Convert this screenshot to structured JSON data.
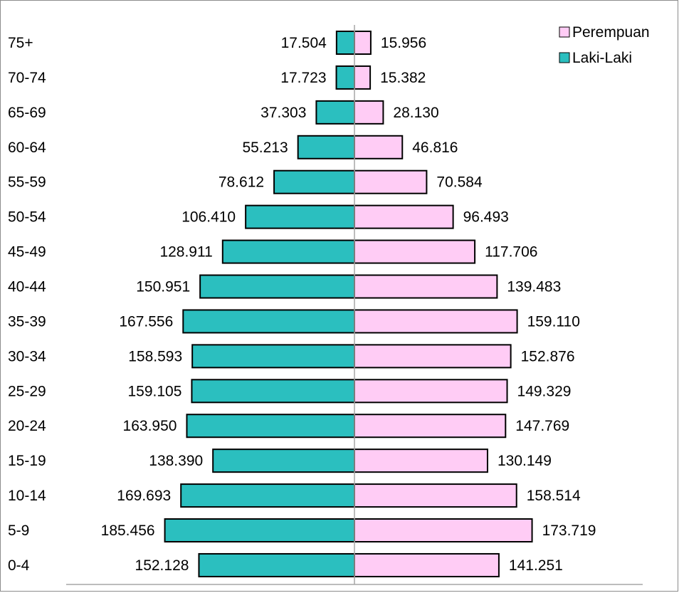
{
  "chart_data": {
    "type": "bar",
    "title": "",
    "xlabel": "",
    "ylabel": "",
    "orientation": "horizontal",
    "layout": "population-pyramid",
    "categories": [
      "75+",
      "70-74",
      "65-69",
      "60-64",
      "55-59",
      "50-54",
      "45-49",
      "40-44",
      "35-39",
      "30-34",
      "25-29",
      "20-24",
      "15-19",
      "10-14",
      "5-9",
      "0-4"
    ],
    "series": [
      {
        "name": "Perempuan",
        "side": "right",
        "color": "#FFCCF5",
        "values": [
          15956,
          15382,
          28130,
          46816,
          70584,
          96493,
          117706,
          139483,
          159110,
          152876,
          149329,
          147769,
          130149,
          158514,
          173719,
          141251
        ],
        "labels": [
          "15.956",
          "15.382",
          "28.130",
          "46.816",
          "70.584",
          "96.493",
          "117.706",
          "139.483",
          "159.110",
          "152.876",
          "149.329",
          "147.769",
          "130.149",
          "158.514",
          "173.719",
          "141.251"
        ]
      },
      {
        "name": "Laki-Laki",
        "side": "left",
        "color": "#2BBFBF",
        "values": [
          17504,
          17723,
          37303,
          55213,
          78612,
          106410,
          128911,
          150951,
          167556,
          158593,
          159105,
          163950,
          138390,
          169693,
          185456,
          152128
        ],
        "labels": [
          "17.504",
          "17.723",
          "37.303",
          "55.213",
          "78.612",
          "106.410",
          "128.911",
          "150.951",
          "167.556",
          "158.593",
          "159.105",
          "163.950",
          "138.390",
          "169.693",
          "185.456",
          "152.128"
        ]
      }
    ],
    "legend": {
      "position": "top-right",
      "entries": [
        "Perempuan",
        "Laki-Laki"
      ]
    },
    "grid": false,
    "axis_color": "#A6A6A6"
  }
}
